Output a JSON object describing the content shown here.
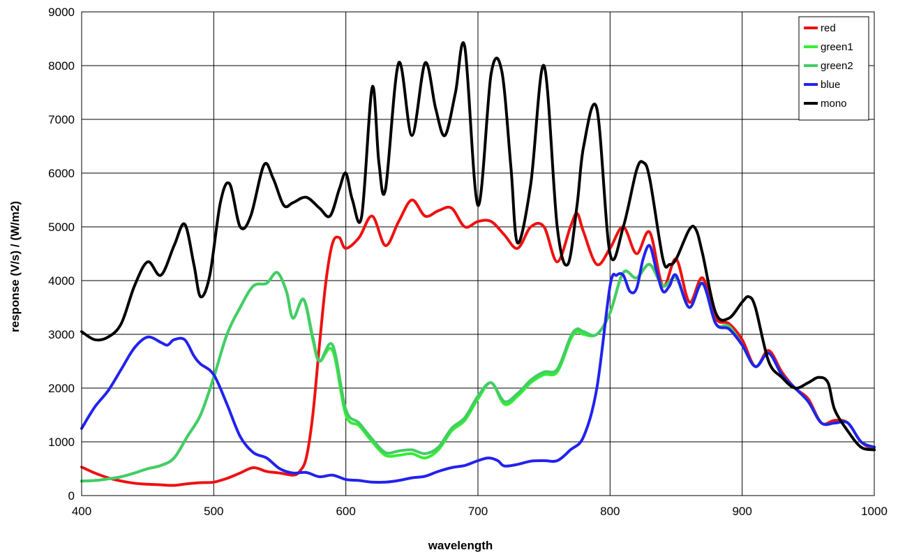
{
  "chart_data": {
    "type": "line",
    "title": "",
    "xlabel": "wavelength",
    "ylabel": "response (V/s) / (W/m2)",
    "xlim": [
      400,
      1000
    ],
    "ylim": [
      0,
      9000
    ],
    "xticks": [
      400,
      500,
      600,
      700,
      800,
      900,
      1000
    ],
    "yticks": [
      0,
      1000,
      2000,
      3000,
      4000,
      5000,
      6000,
      7000,
      8000,
      9000
    ],
    "grid": true,
    "legend_position": "top-right",
    "series": [
      {
        "name": "red",
        "color": "#ee1111",
        "x": [
          400,
          410,
          420,
          430,
          440,
          450,
          460,
          470,
          480,
          490,
          500,
          510,
          520,
          530,
          540,
          550,
          560,
          565,
          570,
          575,
          580,
          585,
          590,
          595,
          600,
          610,
          620,
          630,
          640,
          650,
          660,
          670,
          680,
          690,
          700,
          710,
          720,
          730,
          740,
          750,
          760,
          770,
          775,
          780,
          790,
          800,
          810,
          820,
          830,
          840,
          850,
          860,
          870,
          880,
          890,
          900,
          910,
          920,
          930,
          940,
          950,
          960,
          970,
          980,
          990,
          1000
        ],
        "y": [
          530,
          420,
          330,
          270,
          230,
          210,
          200,
          190,
          220,
          240,
          250,
          320,
          420,
          520,
          450,
          420,
          380,
          450,
          700,
          1500,
          2800,
          4000,
          4700,
          4800,
          4600,
          4800,
          5200,
          4650,
          5100,
          5500,
          5200,
          5300,
          5350,
          5000,
          5100,
          5100,
          4850,
          4600,
          5000,
          5000,
          4350,
          5000,
          5250,
          4900,
          4300,
          4600,
          5000,
          4500,
          4900,
          3900,
          4400,
          3600,
          4050,
          3300,
          3200,
          2900,
          2400,
          2700,
          2300,
          2000,
          1800,
          1350,
          1400,
          1350,
          1000,
          850
        ]
      },
      {
        "name": "green1",
        "color": "#33ee33",
        "x": [
          400,
          410,
          420,
          430,
          440,
          450,
          460,
          470,
          480,
          490,
          500,
          510,
          520,
          530,
          540,
          548,
          555,
          560,
          568,
          575,
          580,
          590,
          600,
          610,
          620,
          630,
          640,
          650,
          660,
          670,
          680,
          690,
          700,
          710,
          720,
          730,
          740,
          750,
          760,
          770,
          775,
          780,
          790,
          800,
          810,
          820,
          830,
          840,
          850,
          860,
          870,
          880,
          890,
          900,
          910,
          920,
          930,
          940,
          950,
          960,
          970,
          980,
          990,
          1000
        ],
        "y": [
          270,
          280,
          310,
          350,
          420,
          500,
          560,
          700,
          1100,
          1500,
          2200,
          3000,
          3500,
          3900,
          3950,
          4150,
          3800,
          3300,
          3650,
          2900,
          2500,
          2700,
          1500,
          1300,
          1000,
          750,
          750,
          780,
          700,
          850,
          1200,
          1400,
          1800,
          2100,
          1700,
          1850,
          2100,
          2250,
          2300,
          2900,
          3050,
          3000,
          3000,
          3400,
          4150,
          4050,
          4300,
          3900,
          4050,
          3500,
          3950,
          3200,
          3150,
          2800,
          2400,
          2650,
          2250,
          2000,
          1750,
          1350,
          1350,
          1350,
          1000,
          900
        ]
      },
      {
        "name": "green2",
        "color": "#44cc66",
        "x": [
          400,
          410,
          420,
          430,
          440,
          450,
          460,
          470,
          480,
          490,
          500,
          510,
          520,
          530,
          540,
          548,
          555,
          560,
          568,
          575,
          580,
          590,
          600,
          610,
          620,
          630,
          640,
          650,
          660,
          670,
          680,
          690,
          700,
          710,
          720,
          730,
          740,
          750,
          760,
          770,
          775,
          780,
          790,
          800,
          810,
          820,
          830,
          840,
          850,
          860,
          870,
          880,
          890,
          900,
          910,
          920,
          930,
          940,
          950,
          960,
          970,
          980,
          990,
          1000
        ],
        "y": [
          270,
          280,
          310,
          350,
          420,
          500,
          560,
          700,
          1100,
          1500,
          2200,
          3000,
          3500,
          3900,
          3950,
          4150,
          3800,
          3300,
          3650,
          2950,
          2500,
          2800,
          1600,
          1350,
          1050,
          800,
          830,
          850,
          780,
          900,
          1250,
          1450,
          1850,
          2100,
          1750,
          1900,
          2150,
          2300,
          2350,
          2950,
          3100,
          3050,
          3000,
          3400,
          4150,
          4050,
          4300,
          3900,
          4050,
          3500,
          3950,
          3200,
          3150,
          2800,
          2400,
          2650,
          2250,
          2000,
          1750,
          1350,
          1350,
          1350,
          1000,
          900
        ]
      },
      {
        "name": "blue",
        "color": "#2222ee",
        "x": [
          400,
          410,
          420,
          430,
          440,
          450,
          460,
          465,
          470,
          478,
          485,
          490,
          500,
          510,
          520,
          530,
          540,
          550,
          560,
          570,
          580,
          590,
          600,
          610,
          620,
          630,
          640,
          650,
          660,
          670,
          680,
          690,
          700,
          708,
          715,
          720,
          730,
          740,
          750,
          760,
          770,
          780,
          790,
          800,
          805,
          810,
          815,
          820,
          825,
          830,
          835,
          840,
          845,
          850,
          860,
          870,
          880,
          890,
          900,
          910,
          920,
          930,
          940,
          950,
          960,
          970,
          980,
          990,
          1000
        ],
        "y": [
          1250,
          1650,
          1950,
          2350,
          2750,
          2950,
          2850,
          2800,
          2900,
          2900,
          2600,
          2450,
          2250,
          1700,
          1100,
          800,
          700,
          500,
          420,
          430,
          350,
          380,
          300,
          280,
          250,
          250,
          280,
          330,
          360,
          450,
          520,
          560,
          650,
          700,
          650,
          550,
          580,
          640,
          650,
          650,
          850,
          1100,
          2000,
          3900,
          4100,
          4100,
          3800,
          3850,
          4400,
          4650,
          4200,
          3800,
          3900,
          4100,
          3500,
          3950,
          3200,
          3100,
          2800,
          2400,
          2650,
          2250,
          2000,
          1750,
          1350,
          1350,
          1350,
          1000,
          900
        ]
      },
      {
        "name": "mono",
        "color": "#000000",
        "x": [
          400,
          410,
          420,
          430,
          440,
          450,
          460,
          470,
          478,
          485,
          490,
          497,
          505,
          512,
          520,
          528,
          538,
          545,
          553,
          560,
          570,
          580,
          588,
          595,
          600,
          605,
          612,
          620,
          625,
          630,
          640,
          650,
          660,
          668,
          675,
          683,
          690,
          700,
          710,
          718,
          725,
          730,
          740,
          750,
          760,
          768,
          775,
          780,
          790,
          800,
          810,
          820,
          825,
          830,
          840,
          845,
          850,
          860,
          865,
          870,
          880,
          890,
          900,
          905,
          910,
          920,
          930,
          940,
          950,
          958,
          965,
          970,
          980,
          990,
          1000
        ],
        "y": [
          3050,
          2900,
          2950,
          3200,
          3900,
          4350,
          4100,
          4650,
          5050,
          4300,
          3700,
          4100,
          5450,
          5800,
          5000,
          5200,
          6150,
          5900,
          5400,
          5450,
          5550,
          5350,
          5200,
          5700,
          6000,
          5500,
          5200,
          7600,
          6200,
          5700,
          8050,
          6700,
          8050,
          7200,
          6700,
          7500,
          8350,
          5400,
          7850,
          7900,
          6100,
          4700,
          5800,
          8000,
          5000,
          4300,
          5400,
          6500,
          7200,
          4500,
          5000,
          6050,
          6200,
          5900,
          4400,
          4300,
          4400,
          4950,
          4950,
          4500,
          3400,
          3300,
          3600,
          3700,
          3500,
          2500,
          2200,
          2000,
          2100,
          2200,
          2100,
          1600,
          1200,
          900,
          850
        ]
      }
    ]
  }
}
